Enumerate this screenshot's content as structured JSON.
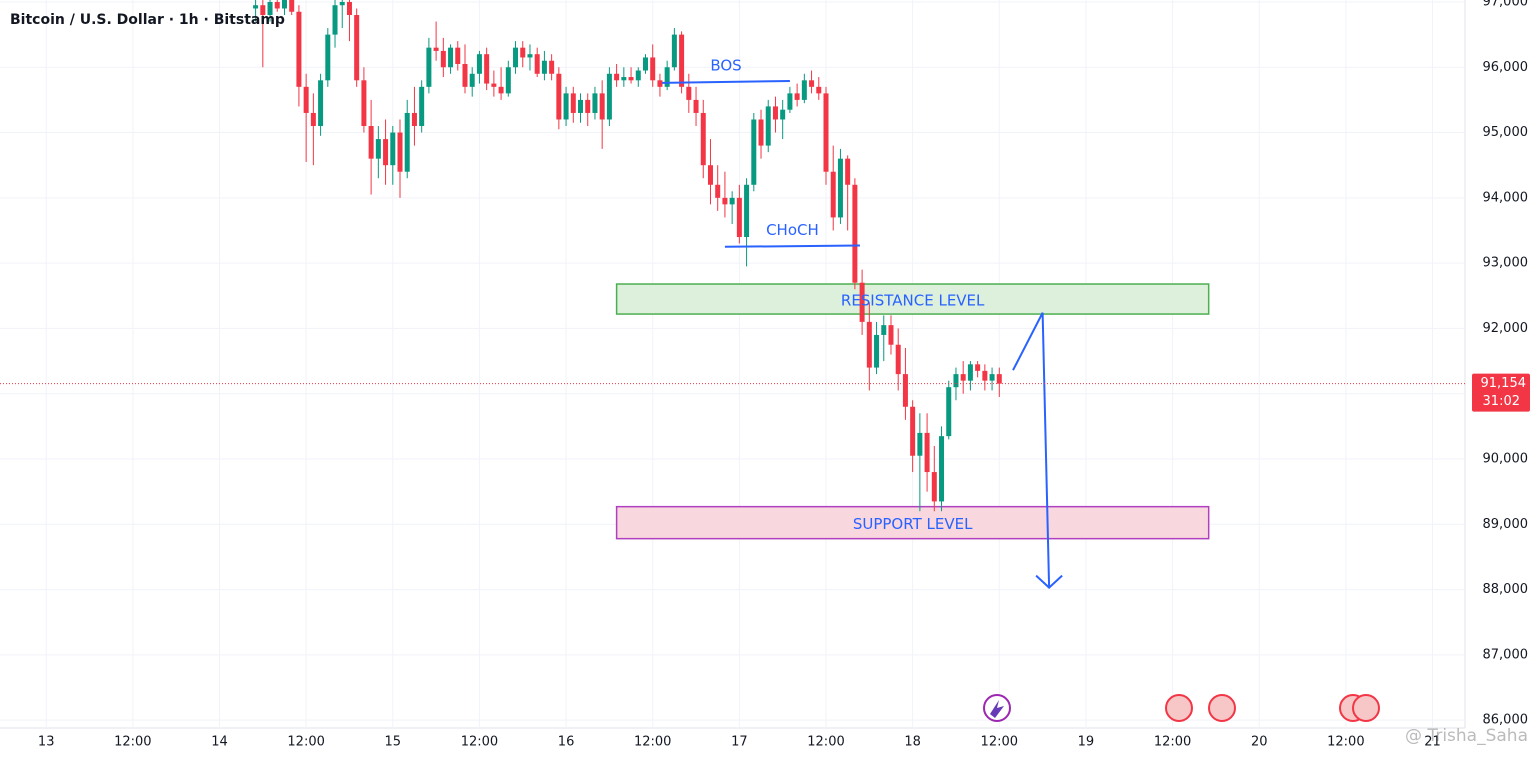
{
  "chart_data": {
    "type": "candlestick",
    "title": "Bitcoin / U.S. Dollar · 1h · Bitstamp",
    "up_color": "#089981",
    "down_color": "#f23645",
    "grid": true,
    "xlim": [
      -6.4,
      196.5
    ],
    "ylim": [
      85880,
      97030
    ],
    "yticks": [
      {
        "value": 86000,
        "label": "86,000"
      },
      {
        "value": 87000,
        "label": "87,000"
      },
      {
        "value": 88000,
        "label": "88,000"
      },
      {
        "value": 89000,
        "label": "89,000"
      },
      {
        "value": 90000,
        "label": "90,000"
      },
      {
        "value": 91000,
        "label": "91,000"
      },
      {
        "value": 92000,
        "label": "92,000"
      },
      {
        "value": 93000,
        "label": "93,000"
      },
      {
        "value": 94000,
        "label": "94,000"
      },
      {
        "value": 95000,
        "label": "95,000"
      },
      {
        "value": 96000,
        "label": "96,000"
      },
      {
        "value": 97000,
        "label": "97,000"
      }
    ],
    "xticks": [
      {
        "value": 0,
        "label": "13"
      },
      {
        "value": 12,
        "label": "12:00"
      },
      {
        "value": 24,
        "label": "14"
      },
      {
        "value": 36,
        "label": "12:00"
      },
      {
        "value": 48,
        "label": "15"
      },
      {
        "value": 60,
        "label": "12:00"
      },
      {
        "value": 72,
        "label": "16"
      },
      {
        "value": 84,
        "label": "12:00"
      },
      {
        "value": 96,
        "label": "17"
      },
      {
        "value": 108,
        "label": "12:00"
      },
      {
        "value": 120,
        "label": "18"
      },
      {
        "value": 132,
        "label": "12:00"
      },
      {
        "value": 144,
        "label": "19"
      },
      {
        "value": 156,
        "label": "12:00"
      },
      {
        "value": 168,
        "label": "20"
      },
      {
        "value": 180,
        "label": "12:00"
      },
      {
        "value": 192,
        "label": "21"
      }
    ],
    "x": [
      29,
      30,
      31,
      32,
      33,
      34,
      35,
      36,
      37,
      38,
      39,
      40,
      41,
      42,
      43,
      44,
      45,
      46,
      47,
      48,
      49,
      50,
      51,
      52,
      53,
      54,
      55,
      56,
      57,
      58,
      59,
      60,
      61,
      62,
      63,
      64,
      65,
      66,
      67,
      68,
      69,
      70,
      71,
      72,
      73,
      74,
      75,
      76,
      77,
      78,
      79,
      80,
      81,
      82,
      83,
      84,
      85,
      86,
      87,
      88,
      89,
      90,
      91,
      92,
      93,
      94,
      95,
      96,
      97,
      98,
      99,
      100,
      101,
      102,
      103,
      104,
      105,
      106,
      107,
      108,
      109,
      110,
      111,
      112,
      113,
      114,
      115,
      116,
      117,
      118,
      119,
      120,
      121,
      122,
      123,
      124,
      125,
      126,
      127,
      128,
      129,
      130,
      131,
      132
    ],
    "open": [
      96900,
      96950,
      96800,
      97000,
      96900,
      97050,
      96850,
      95700,
      95300,
      95100,
      95800,
      96500,
      96950,
      97000,
      96800,
      95800,
      95100,
      94600,
      94900,
      94500,
      95000,
      94400,
      95300,
      95100,
      95700,
      96300,
      96250,
      96000,
      96300,
      96050,
      95700,
      95900,
      96200,
      95750,
      95700,
      95600,
      96000,
      96300,
      96150,
      96200,
      95900,
      96100,
      95900,
      95200,
      95600,
      95300,
      95500,
      95300,
      95600,
      95200,
      95900,
      95800,
      95850,
      95800,
      95950,
      96150,
      95800,
      95700,
      96000,
      96500,
      95700,
      95500,
      95300,
      94500,
      94200,
      94000,
      93900,
      94000,
      93400,
      94200,
      95200,
      94800,
      95400,
      95200,
      95350,
      95600,
      95500,
      95800,
      95700,
      95600,
      94400,
      93700,
      94600,
      94200,
      92700,
      92100,
      91400,
      91900,
      92050,
      91750,
      91300,
      90800,
      90050,
      90400,
      89800,
      89350,
      90350,
      91100,
      91300,
      91200,
      91450,
      91350,
      91200,
      91300
    ],
    "high": [
      97050,
      97100,
      97050,
      97150,
      97100,
      97200,
      96950,
      95900,
      95600,
      95900,
      96600,
      97100,
      97050,
      97100,
      96900,
      96000,
      95500,
      95100,
      95200,
      95100,
      95200,
      95500,
      95700,
      95800,
      96450,
      96700,
      96450,
      96350,
      96400,
      96350,
      96000,
      96250,
      96300,
      95950,
      96000,
      96100,
      96400,
      96400,
      96350,
      96300,
      96250,
      96200,
      96000,
      95700,
      95700,
      95600,
      95600,
      95700,
      95800,
      96000,
      96050,
      96000,
      96000,
      96000,
      96200,
      96350,
      95900,
      96100,
      96600,
      96550,
      95900,
      95700,
      95500,
      94900,
      94500,
      94400,
      94100,
      94200,
      94300,
      95300,
      95350,
      95500,
      95550,
      95500,
      95700,
      95750,
      95900,
      95950,
      95850,
      95700,
      94800,
      94750,
      94650,
      94300,
      92900,
      92400,
      92100,
      92200,
      92200,
      92000,
      91700,
      90900,
      90700,
      90700,
      90200,
      90500,
      91200,
      91400,
      91500,
      91500,
      91500,
      91450,
      91400,
      91400
    ],
    "low": [
      96700,
      96000,
      96700,
      96850,
      96800,
      96800,
      95400,
      94550,
      94500,
      94950,
      95700,
      96300,
      96600,
      96400,
      95700,
      95000,
      94050,
      94300,
      94200,
      94200,
      94000,
      94300,
      94800,
      95000,
      95600,
      96100,
      95850,
      95900,
      95950,
      95600,
      95550,
      95750,
      95650,
      95550,
      95500,
      95550,
      95900,
      96000,
      95950,
      95850,
      95800,
      95800,
      95050,
      95100,
      95150,
      95150,
      95100,
      95200,
      94750,
      95100,
      95700,
      95700,
      95750,
      95700,
      95900,
      95700,
      95550,
      95650,
      95950,
      95600,
      95300,
      95100,
      94300,
      93900,
      93800,
      93700,
      93600,
      93300,
      92950,
      94100,
      94600,
      94700,
      95000,
      94900,
      95300,
      95400,
      95450,
      95600,
      95500,
      94200,
      93500,
      93600,
      93500,
      92600,
      91900,
      91050,
      91300,
      91500,
      91600,
      91050,
      90600,
      89800,
      89200,
      89500,
      89200,
      89200,
      90300,
      90900,
      91000,
      91050,
      91250,
      91050,
      91050,
      90950
    ],
    "close": [
      96950,
      96800,
      97000,
      96900,
      97050,
      96850,
      95700,
      95300,
      95100,
      95800,
      96500,
      96950,
      97000,
      96800,
      95800,
      95100,
      94600,
      94900,
      94500,
      95000,
      94400,
      95300,
      95100,
      95700,
      96300,
      96250,
      96000,
      96300,
      96050,
      95700,
      95900,
      96200,
      95750,
      95700,
      95600,
      96000,
      96300,
      96150,
      96200,
      95900,
      96100,
      95900,
      95200,
      95600,
      95300,
      95500,
      95300,
      95600,
      95200,
      95900,
      95800,
      95850,
      95800,
      95950,
      96150,
      95800,
      95700,
      96000,
      96500,
      95700,
      95500,
      95300,
      94500,
      94200,
      94000,
      93900,
      94000,
      93400,
      94200,
      95200,
      94800,
      95400,
      95200,
      95350,
      95600,
      95500,
      95800,
      95700,
      95600,
      94400,
      93700,
      94600,
      94200,
      92700,
      92100,
      91400,
      91900,
      92050,
      91750,
      91300,
      90800,
      90050,
      90400,
      89800,
      89350,
      90350,
      91100,
      91300,
      91200,
      91450,
      91350,
      91200,
      91300,
      91154
    ],
    "last_price": {
      "value": 91154,
      "label": "91,154"
    },
    "countdown": "31:02",
    "lines": [
      {
        "label": "BOS",
        "x": [
          85.3,
          103
        ],
        "y": [
          95760,
          95790
        ]
      },
      {
        "label": "CHoCH",
        "x": [
          94,
          112.7
        ],
        "y": [
          93250,
          93270
        ]
      }
    ],
    "zones": [
      {
        "label": "RESISTANCE LEVEL",
        "x": [
          79,
          161
        ],
        "y": [
          92220,
          92680
        ],
        "fill": "#dcf0dc",
        "stroke": "#4caf50"
      },
      {
        "label": "SUPPORT LEVEL",
        "x": [
          79,
          161
        ],
        "y": [
          88780,
          89270
        ],
        "fill": "#f9d7de",
        "stroke": "#b040c0"
      }
    ],
    "arrow": {
      "x": [
        133.9,
        138,
        138.9
      ],
      "y": [
        91360,
        92240,
        88030
      ],
      "color": "#2962ff"
    },
    "watermark": "@ Trisha_Saha"
  }
}
